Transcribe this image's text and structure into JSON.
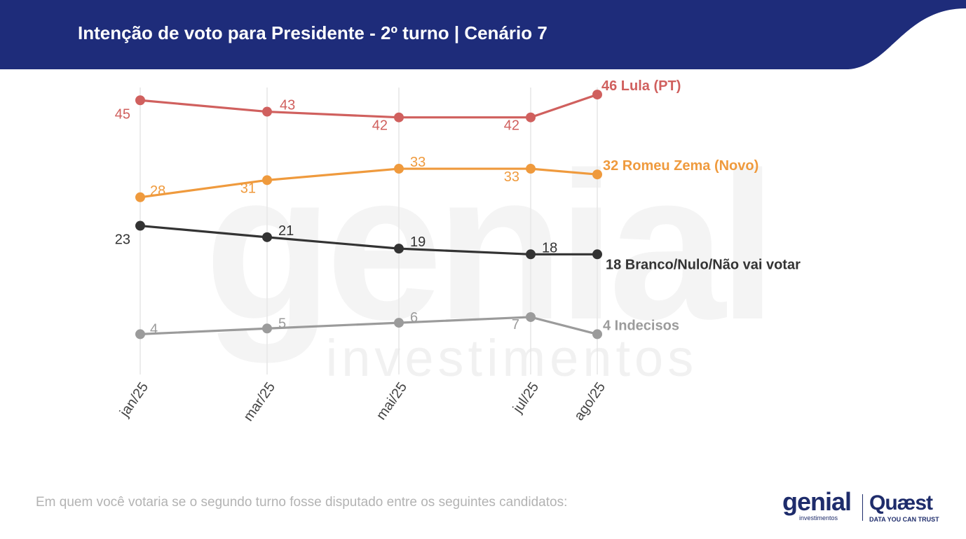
{
  "header": {
    "title": "Intenção de voto para Presidente - 2º turno | Cenário 7",
    "background": "#1e2c7a"
  },
  "footer": {
    "question": "Em quem você votaria se o segundo turno fosse disputado entre os seguintes candidatos:"
  },
  "logos": {
    "genial": "genial",
    "genial_sub": "investimentos",
    "quaest": "Quæst",
    "quaest_tagline": "DATA YOU CAN TRUST"
  },
  "watermark": {
    "main": "genial",
    "sub": "investimentos"
  },
  "chart_data": {
    "type": "line",
    "title": "",
    "xlabel": "",
    "ylabel": "",
    "categories": [
      "jan/25",
      "mar/25",
      "mai/25",
      "jul/25",
      "ago/25"
    ],
    "grid": "vertical",
    "ylim": [
      0,
      50
    ],
    "series": [
      {
        "name": "Lula (PT)",
        "end_label": "46 Lula (PT)",
        "color": "#d0605e",
        "values": [
          45,
          43,
          42,
          42,
          46
        ]
      },
      {
        "name": "Romeu Zema (Novo)",
        "end_label": "32 Romeu Zema (Novo)",
        "color": "#ef9a3d",
        "values": [
          28,
          31,
          33,
          33,
          32
        ]
      },
      {
        "name": "Branco/Nulo/Não vai votar",
        "end_label": "18 Branco/Nulo/Não vai votar",
        "color": "#333333",
        "values": [
          23,
          21,
          19,
          18,
          18
        ]
      },
      {
        "name": "Indecisos",
        "end_label": "4 Indecisos",
        "color": "#9b9b9b",
        "values": [
          4,
          5,
          6,
          7,
          4
        ]
      }
    ]
  }
}
